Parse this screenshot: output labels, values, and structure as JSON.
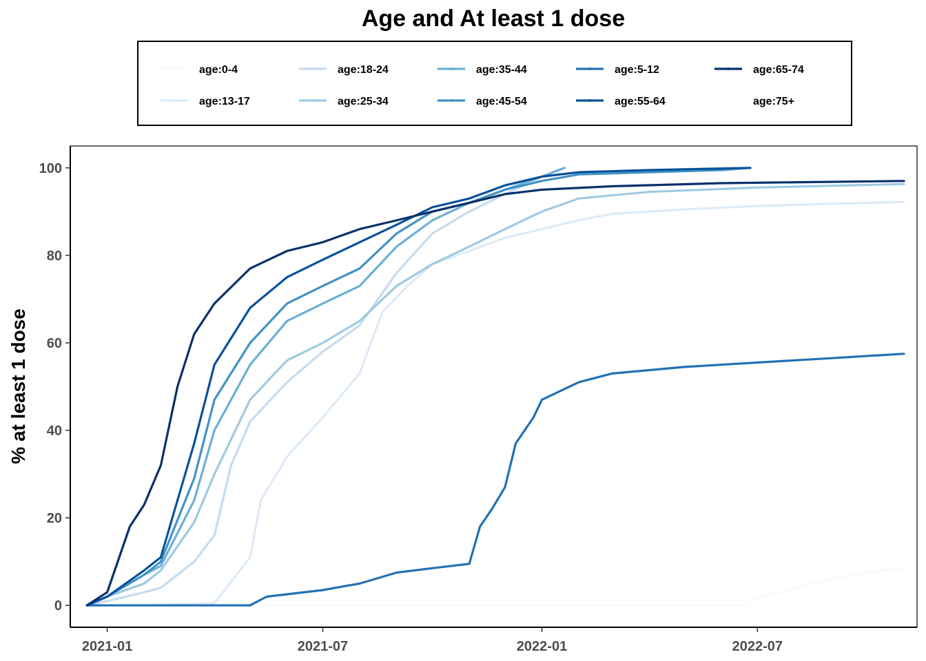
{
  "chart_data": {
    "type": "line",
    "title": "Age and At least 1 dose",
    "xlabel": "",
    "ylabel": "% at least 1 dose",
    "x_axis_type": "date",
    "xlim": [
      "2020-12-01",
      "2022-11-12"
    ],
    "ylim": [
      -5,
      105
    ],
    "x_ticks": [
      "2021-01",
      "2021-07",
      "2022-01",
      "2022-07"
    ],
    "y_ticks": [
      0,
      20,
      40,
      60,
      80,
      100
    ],
    "grid": false,
    "legend_placement": "top",
    "series": [
      {
        "name": "age:0-4",
        "color": "#f7fbff",
        "points": [
          [
            "2020-12-15",
            0
          ],
          [
            "2022-06-20",
            0
          ],
          [
            "2022-07-01",
            1.5
          ],
          [
            "2022-08-01",
            4
          ],
          [
            "2022-09-01",
            6
          ],
          [
            "2022-10-01",
            7.5
          ],
          [
            "2022-11-01",
            8.5
          ]
        ]
      },
      {
        "name": "age:13-17",
        "color": "#deebf7",
        "points": [
          [
            "2020-12-15",
            0
          ],
          [
            "2021-02-01",
            0
          ],
          [
            "2021-04-01",
            0.5
          ],
          [
            "2021-05-01",
            11
          ],
          [
            "2021-05-10",
            24
          ],
          [
            "2021-06-01",
            34
          ],
          [
            "2021-07-01",
            43
          ],
          [
            "2021-08-01",
            53
          ],
          [
            "2021-08-20",
            67
          ],
          [
            "2021-09-10",
            73
          ],
          [
            "2021-10-01",
            78
          ],
          [
            "2021-11-01",
            81
          ],
          [
            "2021-12-01",
            84
          ],
          [
            "2022-01-01",
            86
          ],
          [
            "2022-02-01",
            88
          ],
          [
            "2022-03-01",
            89.5
          ],
          [
            "2022-05-01",
            90.5
          ],
          [
            "2022-07-01",
            91.3
          ],
          [
            "2022-09-01",
            91.8
          ],
          [
            "2022-11-01",
            92.2
          ]
        ]
      },
      {
        "name": "age:18-24",
        "color": "#c6dbef",
        "points": [
          [
            "2020-12-15",
            0
          ],
          [
            "2021-01-01",
            1
          ],
          [
            "2021-02-01",
            3
          ],
          [
            "2021-02-15",
            4
          ],
          [
            "2021-03-15",
            10
          ],
          [
            "2021-04-01",
            16
          ],
          [
            "2021-04-15",
            32
          ],
          [
            "2021-05-01",
            42
          ],
          [
            "2021-06-01",
            51
          ],
          [
            "2021-07-01",
            58
          ],
          [
            "2021-08-01",
            64
          ],
          [
            "2021-09-01",
            76
          ],
          [
            "2021-10-01",
            85
          ],
          [
            "2021-11-01",
            90
          ],
          [
            "2021-12-01",
            94
          ],
          [
            "2022-01-01",
            98
          ],
          [
            "2022-01-20",
            100
          ]
        ]
      },
      {
        "name": "age:25-34",
        "color": "#9ecae1",
        "points": [
          [
            "2020-12-15",
            0
          ],
          [
            "2021-01-01",
            2
          ],
          [
            "2021-02-01",
            5
          ],
          [
            "2021-02-15",
            8
          ],
          [
            "2021-03-15",
            19
          ],
          [
            "2021-04-01",
            30
          ],
          [
            "2021-05-01",
            47
          ],
          [
            "2021-06-01",
            56
          ],
          [
            "2021-07-01",
            60
          ],
          [
            "2021-08-01",
            65
          ],
          [
            "2021-09-01",
            73
          ],
          [
            "2021-10-01",
            78
          ],
          [
            "2021-11-01",
            82
          ],
          [
            "2021-12-01",
            86
          ],
          [
            "2022-01-01",
            90
          ],
          [
            "2022-02-01",
            93
          ],
          [
            "2022-04-01",
            94.5
          ],
          [
            "2022-07-01",
            95.5
          ],
          [
            "2022-11-01",
            96.3
          ]
        ]
      },
      {
        "name": "age:35-44",
        "color": "#6baed6",
        "points": [
          [
            "2020-12-15",
            0
          ],
          [
            "2021-01-01",
            2
          ],
          [
            "2021-02-01",
            7
          ],
          [
            "2021-02-15",
            9
          ],
          [
            "2021-03-15",
            24
          ],
          [
            "2021-04-01",
            40
          ],
          [
            "2021-05-01",
            55
          ],
          [
            "2021-06-01",
            65
          ],
          [
            "2021-07-01",
            69
          ],
          [
            "2021-08-01",
            73
          ],
          [
            "2021-09-01",
            82
          ],
          [
            "2021-10-01",
            88
          ],
          [
            "2021-11-01",
            92
          ],
          [
            "2021-12-01",
            95
          ],
          [
            "2022-01-01",
            98
          ],
          [
            "2022-01-20",
            100
          ]
        ]
      },
      {
        "name": "age:45-54",
        "color": "#4292c6",
        "points": [
          [
            "2020-12-15",
            0
          ],
          [
            "2021-01-01",
            2
          ],
          [
            "2021-02-01",
            7
          ],
          [
            "2021-02-15",
            10
          ],
          [
            "2021-03-15",
            29
          ],
          [
            "2021-04-01",
            47
          ],
          [
            "2021-05-01",
            60
          ],
          [
            "2021-06-01",
            69
          ],
          [
            "2021-07-01",
            73
          ],
          [
            "2021-08-01",
            77
          ],
          [
            "2021-09-01",
            85
          ],
          [
            "2021-10-01",
            90
          ],
          [
            "2021-11-01",
            92
          ],
          [
            "2021-12-01",
            95
          ],
          [
            "2022-01-01",
            97
          ],
          [
            "2022-02-01",
            98.5
          ],
          [
            "2022-04-01",
            99
          ],
          [
            "2022-06-01",
            99.5
          ],
          [
            "2022-06-25",
            100
          ]
        ]
      },
      {
        "name": "age:5-12",
        "color": "#2171b5",
        "points": [
          [
            "2020-12-15",
            0
          ],
          [
            "2021-05-01",
            0
          ],
          [
            "2021-05-15",
            2
          ],
          [
            "2021-07-01",
            3.5
          ],
          [
            "2021-08-01",
            5
          ],
          [
            "2021-09-01",
            7.5
          ],
          [
            "2021-10-01",
            8.5
          ],
          [
            "2021-11-01",
            9.5
          ],
          [
            "2021-11-10",
            18
          ],
          [
            "2021-11-20",
            22
          ],
          [
            "2021-12-01",
            27
          ],
          [
            "2021-12-10",
            37
          ],
          [
            "2021-12-25",
            43
          ],
          [
            "2022-01-01",
            47
          ],
          [
            "2022-02-01",
            51
          ],
          [
            "2022-03-01",
            53
          ],
          [
            "2022-05-01",
            54.5
          ],
          [
            "2022-07-01",
            55.5
          ],
          [
            "2022-09-01",
            56.5
          ],
          [
            "2022-11-01",
            57.5
          ]
        ]
      },
      {
        "name": "age:55-64",
        "color": "#08519c",
        "points": [
          [
            "2020-12-15",
            0
          ],
          [
            "2021-01-01",
            2
          ],
          [
            "2021-02-01",
            8
          ],
          [
            "2021-02-15",
            11
          ],
          [
            "2021-03-15",
            37
          ],
          [
            "2021-04-01",
            55
          ],
          [
            "2021-05-01",
            68
          ],
          [
            "2021-06-01",
            75
          ],
          [
            "2021-07-01",
            79
          ],
          [
            "2021-08-01",
            83
          ],
          [
            "2021-09-01",
            87
          ],
          [
            "2021-10-01",
            91
          ],
          [
            "2021-11-01",
            93
          ],
          [
            "2021-12-01",
            96
          ],
          [
            "2022-01-01",
            98
          ],
          [
            "2022-02-01",
            99
          ],
          [
            "2022-04-01",
            99.5
          ],
          [
            "2022-06-25",
            100
          ]
        ]
      },
      {
        "name": "age:65-74",
        "color": "#08306b",
        "points": [
          [
            "2020-12-15",
            0
          ],
          [
            "2021-01-01",
            3
          ],
          [
            "2021-01-20",
            18
          ],
          [
            "2021-02-01",
            23
          ],
          [
            "2021-02-15",
            32
          ],
          [
            "2021-03-01",
            50
          ],
          [
            "2021-03-15",
            62
          ],
          [
            "2021-04-01",
            69
          ],
          [
            "2021-05-01",
            77
          ],
          [
            "2021-06-01",
            81
          ],
          [
            "2021-07-01",
            83
          ],
          [
            "2021-08-01",
            86
          ],
          [
            "2021-09-01",
            88
          ],
          [
            "2021-10-01",
            90
          ],
          [
            "2021-11-01",
            92
          ],
          [
            "2021-12-01",
            94
          ],
          [
            "2022-01-01",
            95
          ],
          [
            "2022-03-01",
            95.8
          ],
          [
            "2022-06-01",
            96.5
          ],
          [
            "2022-11-01",
            97
          ]
        ]
      },
      {
        "name": "age:75+",
        "color": "#08306b",
        "points": []
      }
    ]
  }
}
